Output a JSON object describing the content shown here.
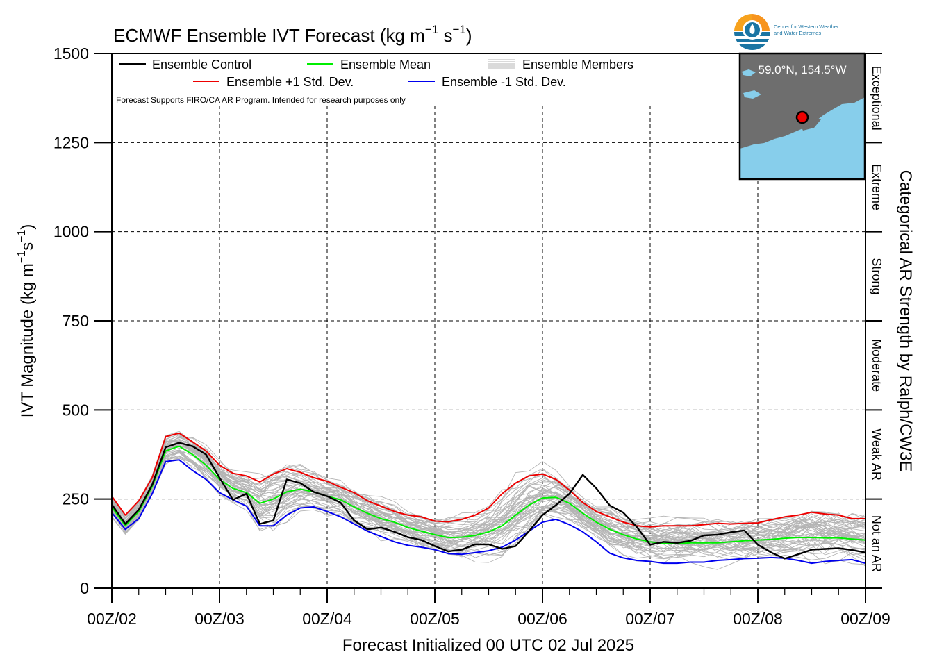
{
  "chart_data": {
    "type": "line",
    "title": "ECMWF Ensemble IVT Forecast (kg m",
    "title_sup1": "−1",
    "title_mid": " s",
    "title_sup2": "−1",
    "title_end": ")",
    "ylabel": "IVT Magnitude (kg m",
    "ylabel_sup1": "−1",
    "ylabel_mid": "s",
    "ylabel_sup2": "−1",
    "ylabel_end": ")",
    "xlabel": "Forecast Initialized 00 UTC 02 Jul 2025",
    "right_label": "Categorical AR Strength by Ralph/CW3E",
    "note": "Forecast Supports FIRO/CA AR Program. Intended for research purposes only",
    "ylim": [
      0,
      1500
    ],
    "xlim": [
      0,
      168
    ],
    "y_ticks": [
      "0",
      "250",
      "500",
      "750",
      "1000",
      "1250",
      "1500"
    ],
    "y_tick_values": [
      0,
      250,
      500,
      750,
      1000,
      1250,
      1500
    ],
    "x_ticks": [
      "00Z/02",
      "00Z/03",
      "00Z/04",
      "00Z/05",
      "00Z/06",
      "00Z/07",
      "00Z/08",
      "00Z/09"
    ],
    "x_tick_values": [
      0,
      24,
      48,
      72,
      96,
      120,
      144,
      168
    ],
    "grid": true,
    "legend_position": "top-left",
    "categories": [
      {
        "label": "Not an AR",
        "range": [
          0,
          250
        ]
      },
      {
        "label": "Weak AR",
        "range": [
          250,
          500
        ]
      },
      {
        "label": "Moderate",
        "range": [
          500,
          750
        ]
      },
      {
        "label": "Strong",
        "range": [
          750,
          1000
        ]
      },
      {
        "label": "Extreme",
        "range": [
          1000,
          1250
        ]
      },
      {
        "label": "Exceptional",
        "range": [
          1250,
          1500
        ]
      }
    ],
    "series": [
      {
        "name": "Ensemble Control",
        "color": "#000000",
        "x": [
          0,
          3,
          6,
          9,
          12,
          15,
          18,
          21,
          24,
          27,
          30,
          33,
          36,
          39,
          42,
          45,
          48,
          51,
          54,
          57,
          60,
          63,
          66,
          69,
          72,
          75,
          78,
          81,
          84,
          87,
          90,
          93,
          96,
          99,
          102,
          105,
          108,
          111,
          114,
          117,
          120,
          123,
          126,
          129,
          132,
          135,
          138,
          141,
          144,
          147,
          150,
          153,
          156,
          159,
          162,
          165,
          168
        ],
        "y": [
          235,
          180,
          220,
          290,
          395,
          408,
          398,
          375,
          310,
          248,
          265,
          180,
          190,
          305,
          295,
          270,
          258,
          240,
          190,
          165,
          170,
          158,
          143,
          135,
          118,
          103,
          108,
          123,
          123,
          110,
          118,
          160,
          205,
          233,
          265,
          318,
          280,
          232,
          212,
          172,
          122,
          130,
          127,
          133,
          148,
          150,
          157,
          162,
          122,
          100,
          83,
          95,
          108,
          110,
          112,
          107,
          100
        ]
      },
      {
        "name": "Ensemble Mean",
        "color": "#00ee00",
        "x": [
          0,
          3,
          6,
          9,
          12,
          15,
          18,
          21,
          24,
          27,
          30,
          33,
          36,
          39,
          42,
          45,
          48,
          51,
          54,
          57,
          60,
          63,
          66,
          69,
          72,
          75,
          78,
          81,
          84,
          87,
          90,
          93,
          96,
          99,
          102,
          105,
          108,
          111,
          114,
          117,
          120,
          123,
          126,
          129,
          132,
          135,
          138,
          141,
          144,
          147,
          150,
          153,
          156,
          159,
          162,
          165,
          168
        ],
        "y": [
          228,
          175,
          215,
          285,
          385,
          398,
          375,
          345,
          305,
          280,
          268,
          238,
          250,
          270,
          278,
          270,
          258,
          248,
          228,
          210,
          195,
          185,
          170,
          160,
          150,
          142,
          143,
          148,
          158,
          175,
          205,
          233,
          253,
          255,
          238,
          210,
          185,
          165,
          150,
          138,
          130,
          125,
          125,
          127,
          127,
          127,
          130,
          133,
          135,
          137,
          140,
          142,
          142,
          141,
          141,
          138,
          135
        ]
      },
      {
        "name": "Ensemble +1 Std. Dev.",
        "color": "#ee0000",
        "x": [
          0,
          3,
          6,
          9,
          12,
          15,
          18,
          21,
          24,
          27,
          30,
          33,
          36,
          39,
          42,
          45,
          48,
          51,
          54,
          57,
          60,
          63,
          66,
          69,
          72,
          75,
          78,
          81,
          84,
          87,
          90,
          93,
          96,
          99,
          102,
          105,
          108,
          111,
          114,
          117,
          120,
          123,
          126,
          129,
          132,
          135,
          138,
          141,
          144,
          147,
          150,
          153,
          156,
          159,
          162,
          165,
          168
        ],
        "y": [
          258,
          205,
          245,
          310,
          425,
          435,
          410,
          385,
          345,
          322,
          315,
          298,
          320,
          335,
          325,
          310,
          300,
          283,
          268,
          245,
          230,
          215,
          205,
          200,
          188,
          186,
          193,
          205,
          225,
          265,
          295,
          315,
          320,
          305,
          275,
          240,
          215,
          200,
          185,
          175,
          172,
          175,
          175,
          175,
          178,
          182,
          180,
          182,
          183,
          192,
          200,
          205,
          213,
          208,
          205,
          195,
          195
        ]
      },
      {
        "name": "Ensemble -1 Std. Dev.",
        "color": "#0000ee",
        "x": [
          0,
          3,
          6,
          9,
          12,
          15,
          18,
          21,
          24,
          27,
          30,
          33,
          36,
          39,
          42,
          45,
          48,
          51,
          54,
          57,
          60,
          63,
          66,
          69,
          72,
          75,
          78,
          81,
          84,
          87,
          90,
          93,
          96,
          99,
          102,
          105,
          108,
          111,
          114,
          117,
          120,
          123,
          126,
          129,
          132,
          135,
          138,
          141,
          144,
          147,
          150,
          153,
          156,
          159,
          162,
          165,
          168
        ],
        "y": [
          212,
          165,
          195,
          265,
          355,
          360,
          330,
          305,
          268,
          248,
          230,
          175,
          175,
          205,
          225,
          228,
          215,
          200,
          180,
          160,
          145,
          130,
          120,
          115,
          108,
          97,
          95,
          100,
          105,
          115,
          135,
          160,
          185,
          193,
          178,
          158,
          130,
          98,
          85,
          78,
          75,
          70,
          70,
          73,
          73,
          78,
          80,
          83,
          84,
          86,
          84,
          78,
          70,
          75,
          78,
          80,
          70
        ]
      },
      {
        "name": "Ensemble Members",
        "color": "#b4b4b4"
      }
    ],
    "map_inset": {
      "label": "59.0°N, 154.5°W",
      "land_color": "#6e6e6e",
      "water_color": "#87ceeb",
      "marker_color": "#ee0000"
    },
    "logo": {
      "text_line1": "Center for Western Weather",
      "text_line2": "and Water Extremes"
    }
  }
}
